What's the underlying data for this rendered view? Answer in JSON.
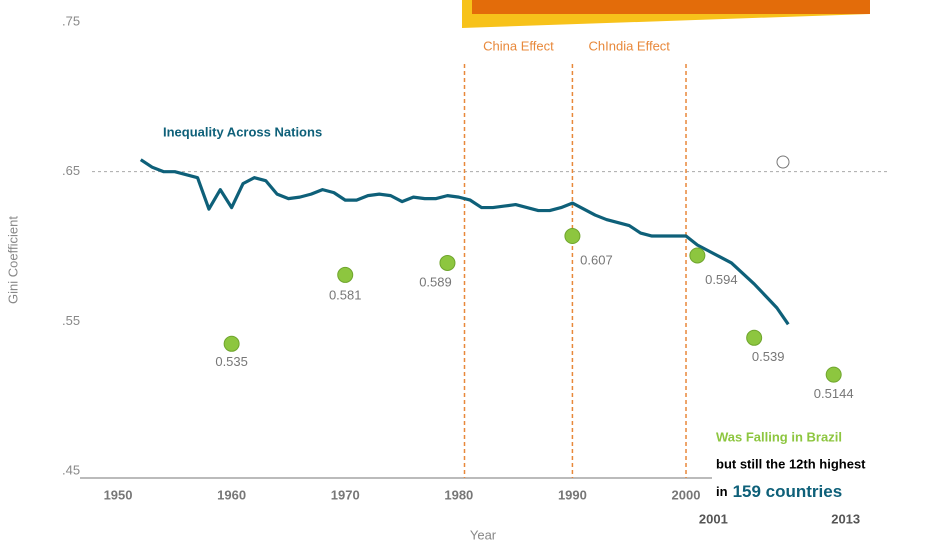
{
  "chart_data": {
    "type": "line",
    "x_label": "Year",
    "y_label": "Gini Coefficient",
    "xlim": [
      1946,
      2020
    ],
    "ylim": [
      0.45,
      0.75
    ],
    "xticks": [
      1950,
      1960,
      1970,
      1980,
      1990,
      2000
    ],
    "extra_xticks": [
      2001,
      2013
    ],
    "yticks": [
      {
        "value": 0.45,
        "label": ".45"
      },
      {
        "value": 0.55,
        "label": ".55"
      },
      {
        "value": 0.65,
        "label": ".65"
      },
      {
        "value": 0.75,
        "label": ".75"
      }
    ],
    "reference_lines": [
      0.65
    ],
    "vlines": [
      1980.5,
      1990,
      2000
    ],
    "vline_color": "#e8883a",
    "period_labels": [
      "China Effect",
      "ChIndia Effect"
    ],
    "series": [
      {
        "name": "Inequality Across Nations",
        "color": "#0e6079",
        "x": [
          1952,
          1953,
          1954,
          1955,
          1956,
          1957,
          1958,
          1959,
          1960,
          1961,
          1962,
          1963,
          1964,
          1965,
          1966,
          1967,
          1968,
          1969,
          1970,
          1971,
          1972,
          1973,
          1974,
          1975,
          1976,
          1977,
          1978,
          1979,
          1980,
          1981,
          1982,
          1983,
          1984,
          1985,
          1986,
          1987,
          1988,
          1989,
          1990,
          1991,
          1992,
          1993,
          1994,
          1995,
          1996,
          1997,
          1998,
          1999,
          2000,
          2001,
          2002,
          2003,
          2004,
          2005,
          2006,
          2007,
          2008,
          2009
        ],
        "values": [
          0.658,
          0.653,
          0.65,
          0.65,
          0.648,
          0.646,
          0.625,
          0.638,
          0.626,
          0.642,
          0.646,
          0.644,
          0.635,
          0.632,
          0.633,
          0.635,
          0.638,
          0.636,
          0.631,
          0.631,
          0.634,
          0.635,
          0.634,
          0.63,
          0.633,
          0.632,
          0.632,
          0.634,
          0.633,
          0.631,
          0.626,
          0.626,
          0.627,
          0.628,
          0.626,
          0.624,
          0.624,
          0.626,
          0.629,
          0.625,
          0.621,
          0.618,
          0.616,
          0.614,
          0.609,
          0.607,
          0.607,
          0.607,
          0.607,
          0.601,
          0.597,
          0.593,
          0.589,
          0.582,
          0.575,
          0.567,
          0.559,
          0.548
        ]
      },
      {
        "name": "Was Falling in Brazil",
        "type": "scatter",
        "color": "#8dc63f",
        "x": [
          1960,
          1970,
          1979,
          1990,
          2001,
          2006,
          2013
        ],
        "values": [
          0.535,
          0.581,
          0.589,
          0.607,
          0.594,
          0.539,
          0.5144
        ]
      }
    ],
    "annotations": [
      "but still the 12th highest",
      "in",
      "159 countries"
    ]
  }
}
